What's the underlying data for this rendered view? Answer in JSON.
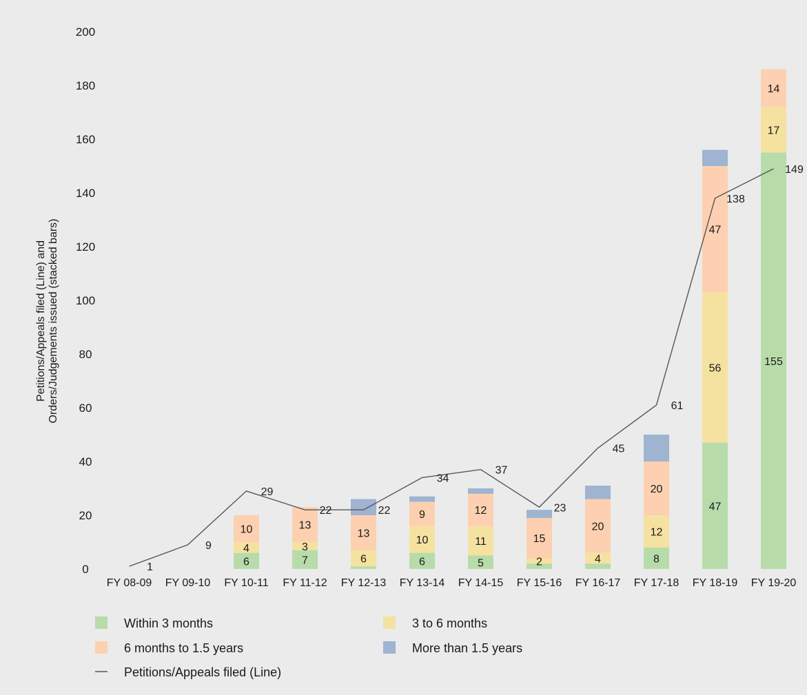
{
  "chart_data": {
    "type": "bar",
    "stacked": true,
    "ylabel_lines": [
      "Petitions/Appeals filed (Line) and",
      "Orders/Judgements issued (stacked bars)"
    ],
    "ylim": [
      0,
      200
    ],
    "yticks": [
      0,
      20,
      40,
      60,
      80,
      100,
      120,
      140,
      160,
      180,
      200
    ],
    "categories": [
      "FY 08-09",
      "FY 09-10",
      "FY 10-11",
      "FY 11-12",
      "FY 12-13",
      "FY 13-14",
      "FY 14-15",
      "FY 15-16",
      "FY 16-17",
      "FY 17-18",
      "FY 18-19",
      "FY 19-20"
    ],
    "series": [
      {
        "name": "Within 3 months",
        "color": "#b7dcaa",
        "kind": "bar",
        "values": [
          0,
          0,
          6,
          7,
          1,
          6,
          5,
          2,
          2,
          8,
          47,
          155
        ],
        "labels": [
          null,
          null,
          "6",
          "7",
          null,
          "6",
          "5",
          null,
          null,
          "8",
          "47",
          "155"
        ]
      },
      {
        "name": "3 to 6 months",
        "color": "#f5e2a0",
        "kind": "bar",
        "values": [
          0,
          0,
          4,
          3,
          6,
          10,
          11,
          2,
          4,
          12,
          56,
          17
        ],
        "labels": [
          null,
          null,
          "4",
          "3",
          "6",
          "10",
          "11",
          "2",
          "4",
          "12",
          "56",
          "17"
        ]
      },
      {
        "name": "6 months to 1.5 years",
        "color": "#fcd0b0",
        "kind": "bar",
        "values": [
          0,
          0,
          10,
          13,
          13,
          9,
          12,
          15,
          20,
          20,
          47,
          14
        ],
        "labels": [
          null,
          null,
          "10",
          "13",
          "13",
          "9",
          "12",
          "15",
          "20",
          "20",
          "47",
          "14"
        ]
      },
      {
        "name": "More than 1.5 years",
        "color": "#9eb4d0",
        "kind": "bar",
        "values": [
          0,
          0,
          0,
          0,
          6,
          2,
          2,
          3,
          5,
          10,
          6,
          0
        ],
        "labels": [
          null,
          null,
          null,
          null,
          null,
          null,
          null,
          null,
          null,
          null,
          null,
          null
        ]
      },
      {
        "name": "Petitions/Appeals filed (Line)",
        "color": "#555555",
        "kind": "line",
        "values": [
          1,
          9,
          29,
          22,
          22,
          34,
          37,
          23,
          45,
          61,
          138,
          149
        ],
        "labels": [
          "1",
          "9",
          "29",
          "22",
          "22",
          "34",
          "37",
          "23",
          "45",
          "61",
          "138",
          "149"
        ]
      }
    ],
    "legend": {
      "placement": "bottom",
      "rows": [
        [
          "Within 3 months",
          "3 to 6 months"
        ],
        [
          "6 months to 1.5 years",
          "More than 1.5 years"
        ],
        [
          "Petitions/Appeals filed (Line)"
        ]
      ]
    }
  }
}
